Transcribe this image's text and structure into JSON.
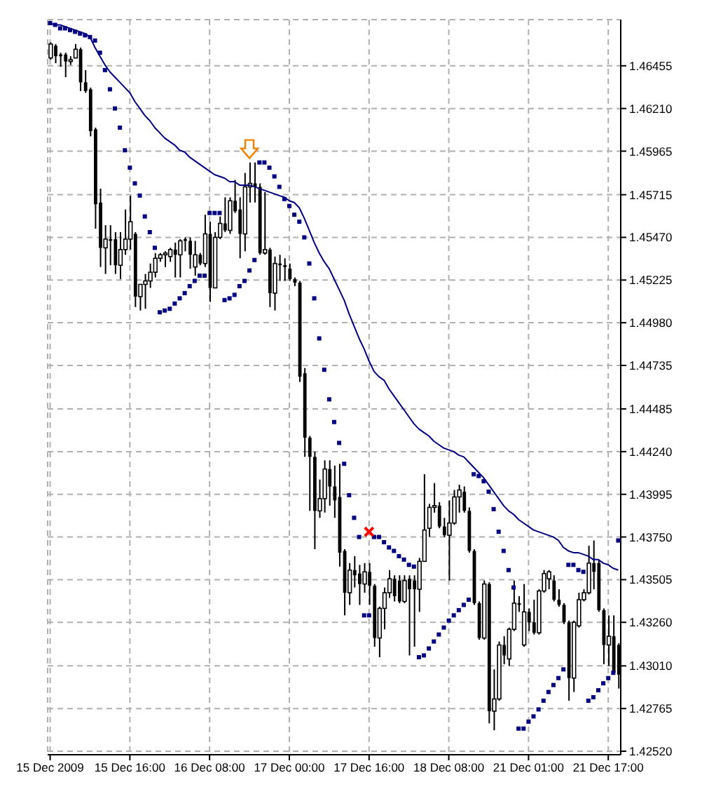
{
  "chart_data": {
    "type": "candlestick",
    "color": "#000000",
    "categories": [
      "15 Dec 2009",
      null,
      null,
      null,
      null,
      null,
      null,
      null,
      null,
      null,
      null,
      null,
      null,
      null,
      null,
      null,
      "15 Dec 16:00",
      null,
      null,
      null,
      null,
      null,
      null,
      null,
      null,
      null,
      null,
      null,
      null,
      null,
      null,
      null,
      "16 Dec 08:00",
      null,
      null,
      null,
      null,
      null,
      null,
      null,
      null,
      null,
      null,
      null,
      null,
      null,
      null,
      null,
      "17 Dec 00:00",
      null,
      null,
      null,
      null,
      null,
      null,
      null,
      null,
      null,
      null,
      null,
      null,
      null,
      null,
      null,
      "17 Dec 16:00",
      null,
      null,
      null,
      null,
      null,
      null,
      null,
      null,
      null,
      null,
      null,
      null,
      null,
      null,
      null,
      "18 Dec 08:00",
      null,
      null,
      null,
      null,
      null,
      null,
      null,
      null,
      null,
      null,
      null,
      null,
      null,
      null,
      null,
      "21 Dec 01:00",
      null,
      null,
      null,
      null,
      null,
      null,
      null,
      null,
      null,
      null,
      null,
      null,
      null,
      null,
      null,
      "21 Dec 17:00",
      null,
      null
    ],
    "ohlc": [
      [
        1.465,
        1.4659,
        1.4649,
        1.4658
      ],
      [
        1.4657,
        1.4658,
        1.4647,
        1.4651
      ],
      [
        1.4652,
        1.4653,
        1.4645,
        1.4651
      ],
      [
        1.4652,
        1.4653,
        1.4639,
        1.4648
      ],
      [
        1.4648,
        1.4651,
        1.4646,
        1.4649
      ],
      [
        1.465,
        1.4658,
        1.465,
        1.4655
      ],
      [
        1.4655,
        1.4656,
        1.4631,
        1.4636
      ],
      [
        1.4636,
        1.4643,
        1.463,
        1.4631
      ],
      [
        1.4632,
        1.4633,
        1.4605,
        1.4608
      ],
      [
        1.4609,
        1.461,
        1.4552,
        1.4566
      ],
      [
        1.4567,
        1.4575,
        1.453,
        1.4541
      ],
      [
        1.4541,
        1.4554,
        1.4526,
        1.4546
      ],
      [
        1.4546,
        1.4554,
        1.4531,
        1.4545
      ],
      [
        1.4546,
        1.455,
        1.4526,
        1.4531
      ],
      [
        1.4531,
        1.455,
        1.4523,
        1.454
      ],
      [
        1.454,
        1.4563,
        1.4537,
        1.4546
      ],
      [
        1.4546,
        1.4571,
        1.454,
        1.4556
      ],
      [
        1.4549,
        1.455,
        1.4507,
        1.4513
      ],
      [
        1.4513,
        1.452,
        1.4505,
        1.452
      ],
      [
        1.452,
        1.4526,
        1.4506,
        1.4522
      ],
      [
        1.4522,
        1.4532,
        1.4518,
        1.4527
      ],
      [
        1.4527,
        1.4538,
        1.4524,
        1.4535
      ],
      [
        1.4535,
        1.4538,
        1.4533,
        1.4537
      ],
      [
        1.4537,
        1.4539,
        1.453,
        1.4538
      ],
      [
        1.4536,
        1.4541,
        1.4533,
        1.454
      ],
      [
        1.454,
        1.4544,
        1.4524,
        1.4537
      ],
      [
        1.4537,
        1.4546,
        1.4524,
        1.4545
      ],
      [
        1.4546,
        1.4547,
        1.4539,
        1.4545
      ],
      [
        1.4545,
        1.4547,
        1.4529,
        1.4537
      ],
      [
        1.453,
        1.4545,
        1.4525,
        1.4537
      ],
      [
        1.4537,
        1.4538,
        1.4531,
        1.4532
      ],
      [
        1.4532,
        1.456,
        1.453,
        1.4549
      ],
      [
        1.4549,
        1.4556,
        1.451,
        1.4518
      ],
      [
        1.4518,
        1.455,
        1.4518,
        1.4547
      ],
      [
        1.4547,
        1.4559,
        1.4546,
        1.4555
      ],
      [
        1.4555,
        1.457,
        1.455,
        1.4551
      ],
      [
        1.4551,
        1.457,
        1.4549,
        1.4568
      ],
      [
        1.4568,
        1.458,
        1.4561,
        1.4562
      ],
      [
        1.4563,
        1.457,
        1.4535,
        1.4549
      ],
      [
        1.4549,
        1.4584,
        1.4539,
        1.4576
      ],
      [
        1.4576,
        1.459,
        1.4567,
        1.4578
      ],
      [
        1.4578,
        1.459,
        1.4567,
        1.4576
      ],
      [
        1.4576,
        1.4578,
        1.4537,
        1.4538
      ],
      [
        1.4538,
        1.4573,
        1.4537,
        1.454
      ],
      [
        1.454,
        1.4541,
        1.4507,
        1.4515
      ],
      [
        1.4515,
        1.4536,
        1.4505,
        1.4532
      ],
      [
        1.4532,
        1.4537,
        1.4522,
        1.4531
      ],
      [
        1.4531,
        1.4535,
        1.4522,
        1.453
      ],
      [
        1.4529,
        1.4532,
        1.4522,
        1.4523
      ],
      [
        1.4523,
        1.4524,
        1.4519,
        1.4521
      ],
      [
        1.4521,
        1.4522,
        1.4464,
        1.4467
      ],
      [
        1.4469,
        1.4472,
        1.4421,
        1.4432
      ],
      [
        1.4432,
        1.4433,
        1.439,
        1.4421
      ],
      [
        1.4421,
        1.4424,
        1.4368,
        1.439
      ],
      [
        1.439,
        1.4408,
        1.4386,
        1.4397
      ],
      [
        1.4397,
        1.4419,
        1.4389,
        1.4414
      ],
      [
        1.4414,
        1.4419,
        1.4393,
        1.4404
      ],
      [
        1.4404,
        1.4416,
        1.4386,
        1.4396
      ],
      [
        1.4398,
        1.4417,
        1.4358,
        1.4366
      ],
      [
        1.4367,
        1.4368,
        1.433,
        1.4343
      ],
      [
        1.4343,
        1.436,
        1.4336,
        1.4356
      ],
      [
        1.4356,
        1.4364,
        1.4346,
        1.4353
      ],
      [
        1.4354,
        1.4359,
        1.4336,
        1.4348
      ],
      [
        1.4348,
        1.436,
        1.4343,
        1.4355
      ],
      [
        1.4355,
        1.436,
        1.4336,
        1.4347
      ],
      [
        1.4347,
        1.4348,
        1.4312,
        1.4317
      ],
      [
        1.4317,
        1.4335,
        1.4306,
        1.4334
      ],
      [
        1.4334,
        1.4346,
        1.4322,
        1.4343
      ],
      [
        1.4343,
        1.4356,
        1.434,
        1.4351
      ],
      [
        1.4351,
        1.4353,
        1.4338,
        1.4341
      ],
      [
        1.435,
        1.4353,
        1.4337,
        1.4338
      ],
      [
        1.4338,
        1.4353,
        1.4337,
        1.435
      ],
      [
        1.4351,
        1.4353,
        1.4307,
        1.4345
      ],
      [
        1.435,
        1.4353,
        1.4312,
        1.4345
      ],
      [
        1.4345,
        1.4363,
        1.4332,
        1.4361
      ],
      [
        1.4361,
        1.4411,
        1.4361,
        1.4379
      ],
      [
        1.438,
        1.4394,
        1.4375,
        1.4392
      ],
      [
        1.4392,
        1.4406,
        1.4389,
        1.4393
      ],
      [
        1.4393,
        1.4395,
        1.438,
        1.4381
      ],
      [
        1.4381,
        1.4386,
        1.4375,
        1.4376
      ],
      [
        1.4376,
        1.4396,
        1.435,
        1.4383
      ],
      [
        1.4383,
        1.4402,
        1.4382,
        1.4398
      ],
      [
        1.4398,
        1.4405,
        1.4389,
        1.4402
      ],
      [
        1.4401,
        1.4404,
        1.4389,
        1.439
      ],
      [
        1.439,
        1.4392,
        1.4366,
        1.4367
      ],
      [
        1.4367,
        1.4368,
        1.4336,
        1.4337
      ],
      [
        1.4337,
        1.4338,
        1.4316,
        1.4317
      ],
      [
        1.4317,
        1.435,
        1.4316,
        1.4348
      ],
      [
        1.4348,
        1.4349,
        1.4268,
        1.4275
      ],
      [
        1.4275,
        1.4299,
        1.4264,
        1.4282
      ],
      [
        1.4282,
        1.4315,
        1.4281,
        1.4313
      ],
      [
        1.4313,
        1.4318,
        1.4302,
        1.4307
      ],
      [
        1.4305,
        1.4323,
        1.4301,
        1.4322
      ],
      [
        1.4322,
        1.435,
        1.4321,
        1.4337
      ],
      [
        1.4337,
        1.4341,
        1.4332,
        1.4336
      ],
      [
        1.4313,
        1.4348,
        1.4312,
        1.4332
      ],
      [
        1.4332,
        1.4334,
        1.4321,
        1.4326
      ],
      [
        1.4326,
        1.4339,
        1.4319,
        1.432
      ],
      [
        1.432,
        1.4345,
        1.4319,
        1.4344
      ],
      [
        1.4344,
        1.4356,
        1.4343,
        1.4354
      ],
      [
        1.4351,
        1.4356,
        1.4345,
        1.4355
      ],
      [
        1.435,
        1.4353,
        1.4338,
        1.4339
      ],
      [
        1.4339,
        1.4345,
        1.4335,
        1.4336
      ],
      [
        1.4336,
        1.4337,
        1.4325,
        1.4326
      ],
      [
        1.4326,
        1.4327,
        1.4281,
        1.4294
      ],
      [
        1.4294,
        1.4327,
        1.4286,
        1.4326
      ],
      [
        1.4324,
        1.4343,
        1.4323,
        1.4339
      ],
      [
        1.4339,
        1.4345,
        1.4338,
        1.4343
      ],
      [
        1.4343,
        1.437,
        1.4342,
        1.436
      ],
      [
        1.436,
        1.4373,
        1.4345,
        1.4355
      ],
      [
        1.436,
        1.4362,
        1.4332,
        1.4333
      ],
      [
        1.4333,
        1.4334,
        1.4302,
        1.4313
      ],
      [
        1.4313,
        1.433,
        1.4301,
        1.4318
      ],
      [
        1.4318,
        1.433,
        1.4296,
        1.4297
      ],
      [
        1.4313,
        1.4314,
        1.4288,
        1.4296
      ]
    ],
    "series": [
      {
        "type": "scatter",
        "color": "#000080",
        "marker": "square",
        "values": [
          1.467,
          1.4669,
          1.4667,
          1.4667,
          1.4666,
          1.4665,
          1.4664,
          1.4663,
          1.4662,
          1.466,
          1.4653,
          1.4643,
          1.4632,
          1.4621,
          1.461,
          1.4597,
          1.4587,
          1.4578,
          1.4571,
          1.4559,
          1.455,
          1.4541,
          1.4504,
          1.4505,
          1.4506,
          1.4509,
          1.4512,
          1.4515,
          1.4519,
          1.4522,
          1.4525,
          1.4525,
          1.4561,
          1.4561,
          1.4561,
          1.4511,
          1.4512,
          1.4514,
          1.4519,
          1.4522,
          1.4528,
          1.4534,
          1.459,
          1.459,
          1.4587,
          1.4582,
          1.4576,
          1.4569,
          1.4565,
          1.456,
          1.4556,
          1.4547,
          1.4532,
          1.4512,
          1.4489,
          1.4471,
          1.4454,
          1.4441,
          1.4429,
          1.4417,
          1.4399,
          1.4386,
          1.4375,
          1.433,
          1.433,
          1.4375,
          1.4375,
          1.4372,
          1.4369,
          1.4367,
          1.4364,
          1.4362,
          1.4359,
          1.4358,
          1.4306,
          1.4307,
          1.4311,
          1.4315,
          1.4319,
          1.4323,
          1.4327,
          1.433,
          1.4333,
          1.4336,
          1.4339,
          1.4411,
          1.441,
          1.4407,
          1.4401,
          1.4391,
          1.4378,
          1.4367,
          1.4356,
          1.4346,
          1.4265,
          1.4265,
          1.4269,
          1.4272,
          1.4276,
          1.4281,
          1.4286,
          1.429,
          1.4294,
          1.4299,
          1.4359,
          1.4359,
          1.4356,
          1.4355,
          1.4281,
          1.4283,
          1.4287,
          1.4291,
          1.4294,
          1.4297,
          1.4373
        ]
      },
      {
        "type": "line",
        "color": "#000080",
        "values": [
          1.467,
          1.4669,
          1.4669,
          1.4668,
          1.4667,
          1.4666,
          1.4665,
          1.4664,
          1.4662,
          1.4656,
          1.4651,
          1.4646,
          1.4642,
          1.4639,
          1.4636,
          1.4633,
          1.463,
          1.4625,
          1.4621,
          1.4617,
          1.4614,
          1.461,
          1.4607,
          1.4604,
          1.4602,
          1.46,
          1.4597,
          1.4596,
          1.4593,
          1.4591,
          1.4589,
          1.4587,
          1.4585,
          1.4583,
          1.4582,
          1.4581,
          1.4579,
          1.4579,
          1.4577,
          1.4577,
          1.4577,
          1.4576,
          1.4575,
          1.4574,
          1.4573,
          1.4572,
          1.4571,
          1.457,
          1.4568,
          1.4567,
          1.4564,
          1.4558,
          1.4551,
          1.4544,
          1.4538,
          1.4533,
          1.4529,
          1.4523,
          1.4517,
          1.4511,
          1.4503,
          1.4496,
          1.4489,
          1.4483,
          1.4476,
          1.447,
          1.4467,
          1.4465,
          1.446,
          1.4456,
          1.4452,
          1.4448,
          1.4444,
          1.444,
          1.4437,
          1.4435,
          1.4433,
          1.443,
          1.4428,
          1.4426,
          1.4425,
          1.4424,
          1.4422,
          1.4421,
          1.4418,
          1.4415,
          1.4412,
          1.4409,
          1.4405,
          1.4401,
          1.4397,
          1.4393,
          1.439,
          1.4388,
          1.4385,
          1.4383,
          1.4381,
          1.4379,
          1.4378,
          1.4377,
          1.4376,
          1.4375,
          1.4373,
          1.4369,
          1.4367,
          1.4366,
          1.4366,
          1.4365,
          1.4364,
          1.4362,
          1.4362,
          1.436,
          1.4359,
          1.4357,
          1.4356
        ]
      }
    ],
    "ylim": [
      1.425,
      1.4672
    ],
    "yticks": [
      1.46455,
      {
        "value": 1.4621,
        "label": "1.46210"
      },
      1.45965,
      1.45715,
      {
        "value": 1.4547,
        "label": "1.45470"
      },
      1.45225,
      {
        "value": 1.4498,
        "label": "1.44980"
      },
      1.44735,
      1.44485,
      {
        "value": 1.4424,
        "label": "1.44240"
      },
      1.43995,
      {
        "value": 1.4375,
        "label": "1.43750"
      },
      1.43505,
      {
        "value": 1.4326,
        "label": "1.43260"
      },
      {
        "value": 1.4301,
        "label": "1.43010"
      },
      1.42765,
      {
        "value": 1.4252,
        "label": "1.42520"
      }
    ],
    "grid": true
  }
}
